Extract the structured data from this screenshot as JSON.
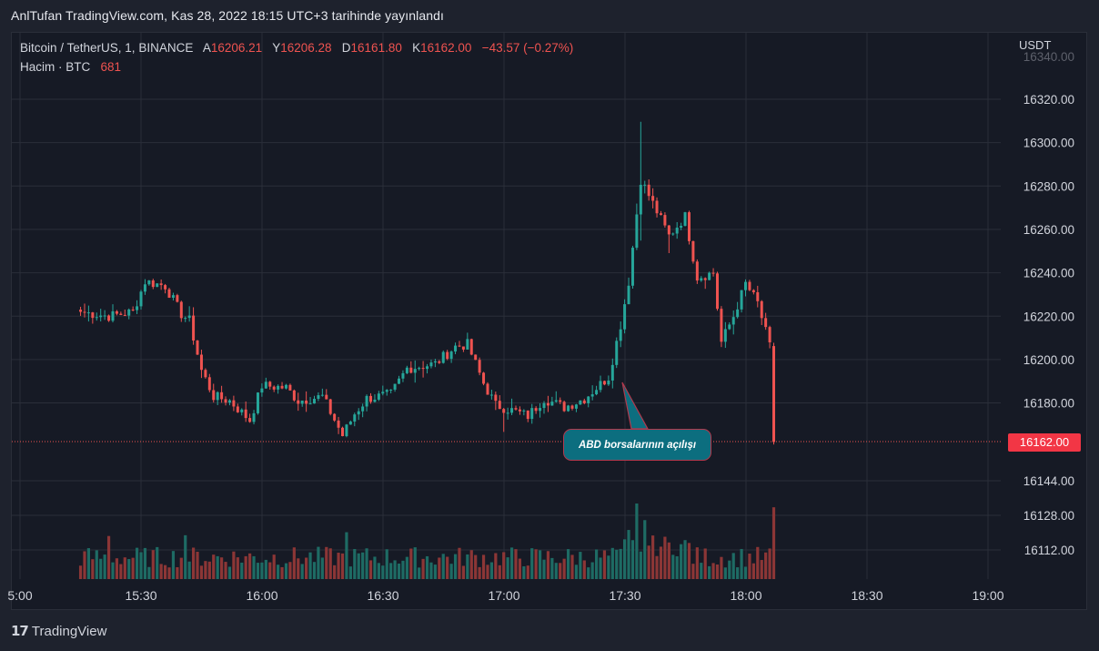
{
  "caption": "AnlTufan TradingView.com, Kas 28, 2022 18:15 UTC+3 tarihinde yayınlandı",
  "legend": {
    "symbol": "Bitcoin / TetherUS, 1, BINANCE",
    "open_label": "A",
    "open": "16206.21",
    "high_label": "Y",
    "high": "16206.28",
    "low_label": "D",
    "low": "16161.80",
    "close_label": "K",
    "close": "16162.00",
    "change": "−43.57 (−0.27%)",
    "volume_label": "Hacim · BTC",
    "volume": "681"
  },
  "unit": "USDT",
  "last_price": "16162.00",
  "annotation": "ABD borsalarının açılışı",
  "footer_brand": "TradingView",
  "colors": {
    "up": "#26a69a",
    "down": "#ef5350",
    "background": "#161a25",
    "grid": "#2a2e39",
    "callout_bg": "#0c6e7f"
  },
  "chart_data": {
    "type": "candlestick",
    "symbol": "BTCUSDT",
    "interval": "1m",
    "time_range": [
      "15:15",
      "18:07"
    ],
    "y_ticks": [
      "16320.00",
      "16300.00",
      "16280.00",
      "16260.00",
      "16240.00",
      "16220.00",
      "16200.00",
      "16180.00",
      "16144.00",
      "16128.00",
      "16112.00"
    ],
    "x_ticks": [
      "5:00",
      "15:30",
      "16:00",
      "16:30",
      "17:00",
      "17:30",
      "18:00",
      "18:30",
      "19:00"
    ],
    "price_range": [
      16100,
      16340
    ],
    "last_price": 16162.0,
    "keypoints": [
      {
        "t": "15:15",
        "p": 16222
      },
      {
        "t": "15:22",
        "p": 16220
      },
      {
        "t": "15:28",
        "p": 16222
      },
      {
        "t": "15:31",
        "p": 16236
      },
      {
        "t": "15:36",
        "p": 16234
      },
      {
        "t": "15:40",
        "p": 16221
      },
      {
        "t": "15:42",
        "p": 16218
      },
      {
        "t": "15:45",
        "p": 16195
      },
      {
        "t": "15:48",
        "p": 16183
      },
      {
        "t": "15:52",
        "p": 16181
      },
      {
        "t": "15:57",
        "p": 16172
      },
      {
        "t": "16:00",
        "p": 16188
      },
      {
        "t": "16:06",
        "p": 16187
      },
      {
        "t": "16:09",
        "p": 16181
      },
      {
        "t": "16:15",
        "p": 16183
      },
      {
        "t": "16:20",
        "p": 16165
      },
      {
        "t": "16:23",
        "p": 16175
      },
      {
        "t": "16:26",
        "p": 16182
      },
      {
        "t": "16:32",
        "p": 16184
      },
      {
        "t": "16:36",
        "p": 16196
      },
      {
        "t": "16:43",
        "p": 16198
      },
      {
        "t": "16:48",
        "p": 16206
      },
      {
        "t": "16:51",
        "p": 16207
      },
      {
        "t": "16:55",
        "p": 16189
      },
      {
        "t": "16:58",
        "p": 16179
      },
      {
        "t": "17:03",
        "p": 16176
      },
      {
        "t": "17:06",
        "p": 16174
      },
      {
        "t": "17:10",
        "p": 16182
      },
      {
        "t": "17:15",
        "p": 16178
      },
      {
        "t": "17:20",
        "p": 16182
      },
      {
        "t": "17:26",
        "p": 16192
      },
      {
        "t": "17:29",
        "p": 16216
      },
      {
        "t": "17:31",
        "p": 16236
      },
      {
        "t": "17:34",
        "p": 16283
      },
      {
        "t": "17:37",
        "p": 16272
      },
      {
        "t": "17:41",
        "p": 16257
      },
      {
        "t": "17:45",
        "p": 16266
      },
      {
        "t": "17:48",
        "p": 16238
      },
      {
        "t": "17:52",
        "p": 16240
      },
      {
        "t": "17:54",
        "p": 16208
      },
      {
        "t": "17:57",
        "p": 16220
      },
      {
        "t": "18:00",
        "p": 16235
      },
      {
        "t": "18:03",
        "p": 16226
      },
      {
        "t": "18:06",
        "p": 16206
      },
      {
        "t": "18:07",
        "p": 16162
      }
    ],
    "volume_spikes": [
      {
        "t": "17:33",
        "v": 1.0
      },
      {
        "t": "17:35",
        "v": 0.78
      },
      {
        "t": "17:31",
        "v": 0.65
      },
      {
        "t": "18:07",
        "v": 0.95
      },
      {
        "t": "16:21",
        "v": 0.62
      },
      {
        "t": "15:41",
        "v": 0.58
      },
      {
        "t": "15:22",
        "v": 0.57
      }
    ]
  }
}
